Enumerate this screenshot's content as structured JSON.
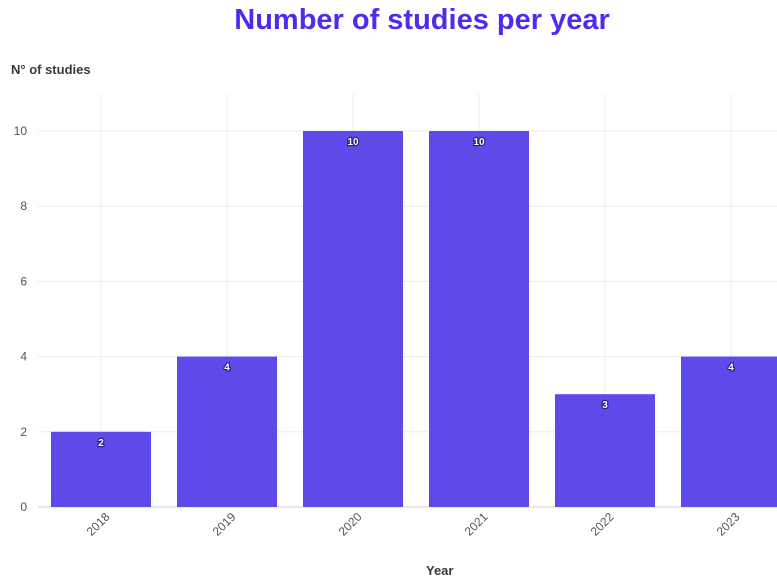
{
  "chart_data": {
    "type": "bar",
    "title": "Number of studies per year",
    "xlabel": "Year",
    "ylabel": "N° of studies",
    "categories": [
      "2018",
      "2019",
      "2020",
      "2021",
      "2022",
      "2023"
    ],
    "values": [
      2,
      4,
      10,
      10,
      3,
      4
    ],
    "yticks": [
      0,
      2,
      4,
      6,
      8,
      10
    ],
    "ylim": [
      0,
      11
    ],
    "grid": true,
    "data_labels": true,
    "bar_color": "#5e4ae8",
    "title_color": "#4a2df0"
  }
}
